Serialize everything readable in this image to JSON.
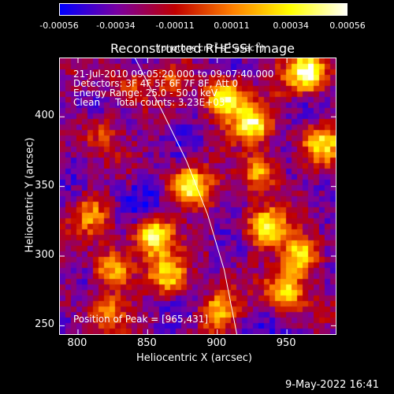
{
  "chart_data": {
    "type": "heatmap",
    "title": "Reconstructed RHESSI Image",
    "xlabel": "Heliocentric X (arcsec)",
    "ylabel": "Heliocentric Y (arcsec)",
    "xlim": [
      787,
      985
    ],
    "ylim": [
      244,
      442
    ],
    "x_ticks": [
      "800",
      "850",
      "900",
      "950"
    ],
    "x_tick_values": [
      800,
      850,
      900,
      950
    ],
    "y_ticks": [
      "250",
      "300",
      "350",
      "400"
    ],
    "y_tick_values": [
      250,
      300,
      350,
      400
    ],
    "colorbar": {
      "ticks": [
        "-0.00056",
        "-0.00034",
        "-0.00011",
        "0.00011",
        "0.00034",
        "0.00056"
      ],
      "tick_values": [
        -0.00056,
        -0.00034,
        -0.00011,
        0.00011,
        0.00034,
        0.00056
      ],
      "range": [
        -0.00056,
        0.00056
      ],
      "units_label": "(photons cm-2 s-1 asec-2)",
      "units_parts": [
        "(photons cm",
        "-2",
        " s",
        "-1",
        " asec",
        "-2",
        ")"
      ],
      "colors": [
        "#0000ff",
        "#7a00a0",
        "#c00000",
        "#ff8000",
        "#ffff00",
        "#ffffff"
      ]
    },
    "annotations": [
      "21-Jul-2010 09:05:20.000 to 09:07:40.000",
      "Detectors: 3F 4F 5F 6F 7F 8F, Att 0",
      "Energy Range: 25.0 - 50.0 keV",
      "Clean     Total counts: 3.23E+03"
    ],
    "peak_label": "Position of Peak = [965,431]",
    "peak_position": [
      965,
      431
    ],
    "limb_curve": [
      [
        841,
        442
      ],
      [
        860,
        405
      ],
      [
        878,
        368
      ],
      [
        893,
        330
      ],
      [
        905,
        290
      ],
      [
        914,
        244
      ]
    ],
    "intensity_regions": [
      {
        "x": 810,
        "y": 330,
        "level": 0.55
      },
      {
        "x": 825,
        "y": 290,
        "level": 0.75
      },
      {
        "x": 855,
        "y": 315,
        "level": 0.85
      },
      {
        "x": 865,
        "y": 285,
        "level": 0.7
      },
      {
        "x": 835,
        "y": 420,
        "level": 0.45
      },
      {
        "x": 815,
        "y": 390,
        "level": 0.5
      },
      {
        "x": 880,
        "y": 350,
        "level": 0.8
      },
      {
        "x": 905,
        "y": 415,
        "level": 0.9
      },
      {
        "x": 925,
        "y": 395,
        "level": 0.8
      },
      {
        "x": 930,
        "y": 360,
        "level": 0.75
      },
      {
        "x": 935,
        "y": 320,
        "level": 0.85
      },
      {
        "x": 960,
        "y": 300,
        "level": 0.85
      },
      {
        "x": 965,
        "y": 431,
        "level": 1.0
      },
      {
        "x": 975,
        "y": 380,
        "level": 0.7
      },
      {
        "x": 950,
        "y": 275,
        "level": 0.75
      },
      {
        "x": 900,
        "y": 260,
        "level": 0.7
      },
      {
        "x": 820,
        "y": 260,
        "level": 0.55
      },
      {
        "x": 870,
        "y": 430,
        "level": 0.4
      },
      {
        "x": 800,
        "y": 350,
        "level": 0.2
      },
      {
        "x": 900,
        "y": 380,
        "level": 0.3
      },
      {
        "x": 845,
        "y": 340,
        "level": 0.1
      },
      {
        "x": 890,
        "y": 310,
        "level": 0.35
      },
      {
        "x": 945,
        "y": 420,
        "level": 0.35
      },
      {
        "x": 860,
        "y": 395,
        "level": 0.25
      }
    ]
  },
  "footer": {
    "timestamp": "9-May-2022 16:41"
  }
}
